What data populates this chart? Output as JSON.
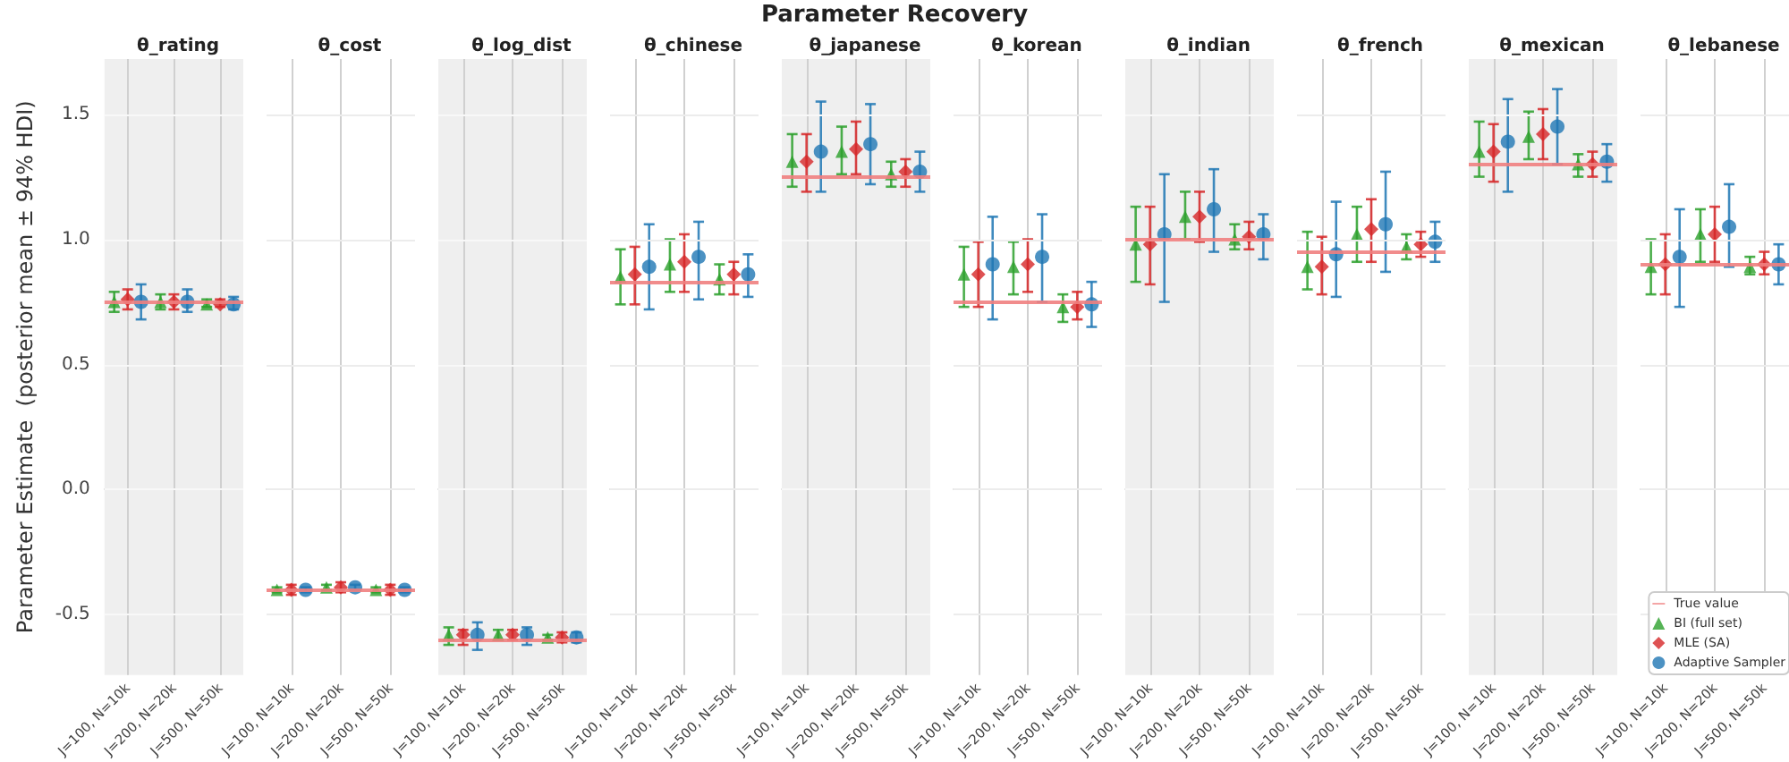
{
  "chart_data": [
    {
      "type": "scatter",
      "title": "θ_rating",
      "ylabel": "Parameter Estimate  (posterior mean ± 94% HDI)",
      "annotations": [
        "Parameter Recovery"
      ],
      "categories": [
        "J=100, N=10k",
        "J=200, N=20k",
        "J=500, N=50k"
      ],
      "ylim": [
        -0.74,
        1.72
      ],
      "yticks": [
        -0.5,
        {
          "value": 0,
          "label": "0.0"
        },
        0.5,
        {
          "value": 1,
          "label": "1.0"
        },
        1.5
      ],
      "grid": true,
      "ref_lines": [
        {
          "axis": "y",
          "value": 0.75,
          "color": "#f08080"
        }
      ],
      "series": [
        {
          "color": "#2ca02c",
          "marker": "triangle",
          "values": [
            0.75,
            0.75,
            0.74
          ],
          "errors": [
            [
              0.71,
              0.79
            ],
            [
              0.72,
              0.78
            ],
            [
              0.73,
              0.76
            ]
          ]
        },
        {
          "color": "#d62728",
          "marker": "diamond",
          "values": [
            0.76,
            0.75,
            0.74
          ],
          "errors": [
            [
              0.72,
              0.8
            ],
            [
              0.72,
              0.78
            ],
            [
              0.73,
              0.76
            ]
          ]
        },
        {
          "color": "#1f77b4",
          "marker": "circle",
          "values": [
            0.75,
            0.75,
            0.74
          ],
          "errors": [
            [
              0.68,
              0.82
            ],
            [
              0.71,
              0.8
            ],
            [
              0.72,
              0.77
            ]
          ]
        }
      ]
    },
    {
      "type": "scatter",
      "title": "θ_cost",
      "categories": [
        "J=100, N=10k",
        "J=200, N=20k",
        "J=500, N=50k"
      ],
      "ylim": [
        -0.74,
        1.72
      ],
      "yticks": [
        -0.5,
        0,
        0.5,
        1,
        1.5
      ],
      "tick_labels": "x",
      "grid": true,
      "ref_lines": [
        {
          "axis": "y",
          "value": -0.4,
          "color": "#f08080"
        }
      ],
      "series": [
        {
          "color": "#2ca02c",
          "marker": "triangle",
          "values": [
            -0.4,
            -0.39,
            -0.4
          ],
          "errors": [
            [
              -0.41,
              -0.39
            ],
            [
              -0.4,
              -0.38
            ],
            [
              -0.41,
              -0.39
            ]
          ]
        },
        {
          "color": "#d62728",
          "marker": "diamond",
          "values": [
            -0.4,
            -0.39,
            -0.4
          ],
          "errors": [
            [
              -0.42,
              -0.38
            ],
            [
              -0.41,
              -0.37
            ],
            [
              -0.42,
              -0.38
            ]
          ]
        },
        {
          "color": "#1f77b4",
          "marker": "circle",
          "values": [
            -0.4,
            -0.39,
            -0.4
          ],
          "errors": [
            [
              -0.41,
              -0.39
            ],
            [
              -0.4,
              -0.38
            ],
            [
              -0.41,
              -0.39
            ]
          ]
        }
      ]
    },
    {
      "type": "scatter",
      "title": "θ_log_dist",
      "categories": [
        "J=100, N=10k",
        "J=200, N=20k",
        "J=500, N=50k"
      ],
      "ylim": [
        -0.74,
        1.72
      ],
      "yticks": [
        -0.5,
        0,
        0.5,
        1,
        1.5
      ],
      "tick_labels": "x",
      "grid": true,
      "ref_lines": [
        {
          "axis": "y",
          "value": -0.6,
          "color": "#f08080"
        }
      ],
      "series": [
        {
          "color": "#2ca02c",
          "marker": "triangle",
          "values": [
            -0.58,
            -0.58,
            -0.59
          ],
          "errors": [
            [
              -0.62,
              -0.55
            ],
            [
              -0.6,
              -0.56
            ],
            [
              -0.6,
              -0.58
            ]
          ]
        },
        {
          "color": "#d62728",
          "marker": "diamond",
          "values": [
            -0.58,
            -0.58,
            -0.59
          ],
          "errors": [
            [
              -0.62,
              -0.56
            ],
            [
              -0.6,
              -0.56
            ],
            [
              -0.61,
              -0.57
            ]
          ]
        },
        {
          "color": "#1f77b4",
          "marker": "circle",
          "values": [
            -0.58,
            -0.58,
            -0.59
          ],
          "errors": [
            [
              -0.64,
              -0.53
            ],
            [
              -0.62,
              -0.55
            ],
            [
              -0.61,
              -0.57
            ]
          ]
        }
      ]
    },
    {
      "type": "scatter",
      "title": "θ_chinese",
      "categories": [
        "J=100, N=10k",
        "J=200, N=20k",
        "J=500, N=50k"
      ],
      "ylim": [
        -0.74,
        1.72
      ],
      "yticks": [
        -0.5,
        0,
        0.5,
        1,
        1.5
      ],
      "tick_labels": "x",
      "grid": true,
      "ref_lines": [
        {
          "axis": "y",
          "value": 0.83,
          "color": "#f08080"
        }
      ],
      "series": [
        {
          "color": "#2ca02c",
          "marker": "triangle",
          "values": [
            0.85,
            0.9,
            0.84
          ],
          "errors": [
            [
              0.74,
              0.96
            ],
            [
              0.79,
              1.0
            ],
            [
              0.78,
              0.9
            ]
          ]
        },
        {
          "color": "#d62728",
          "marker": "diamond",
          "values": [
            0.86,
            0.91,
            0.86
          ],
          "errors": [
            [
              0.74,
              0.97
            ],
            [
              0.79,
              1.02
            ],
            [
              0.78,
              0.91
            ]
          ]
        },
        {
          "color": "#1f77b4",
          "marker": "circle",
          "values": [
            0.89,
            0.93,
            0.86
          ],
          "errors": [
            [
              0.72,
              1.06
            ],
            [
              0.76,
              1.07
            ],
            [
              0.77,
              0.94
            ]
          ]
        }
      ]
    },
    {
      "type": "scatter",
      "title": "θ_japanese",
      "categories": [
        "J=100, N=10k",
        "J=200, N=20k",
        "J=500, N=50k"
      ],
      "ylim": [
        -0.74,
        1.72
      ],
      "yticks": [
        -0.5,
        0,
        0.5,
        1,
        1.5
      ],
      "tick_labels": "x",
      "grid": true,
      "ref_lines": [
        {
          "axis": "y",
          "value": 1.25,
          "color": "#f08080"
        }
      ],
      "series": [
        {
          "color": "#2ca02c",
          "marker": "triangle",
          "values": [
            1.31,
            1.35,
            1.26
          ],
          "errors": [
            [
              1.21,
              1.42
            ],
            [
              1.26,
              1.45
            ],
            [
              1.21,
              1.31
            ]
          ]
        },
        {
          "color": "#d62728",
          "marker": "diamond",
          "values": [
            1.31,
            1.36,
            1.27
          ],
          "errors": [
            [
              1.19,
              1.42
            ],
            [
              1.26,
              1.47
            ],
            [
              1.21,
              1.32
            ]
          ]
        },
        {
          "color": "#1f77b4",
          "marker": "circle",
          "values": [
            1.35,
            1.38,
            1.27
          ],
          "errors": [
            [
              1.19,
              1.55
            ],
            [
              1.22,
              1.54
            ],
            [
              1.19,
              1.35
            ]
          ]
        }
      ]
    },
    {
      "type": "scatter",
      "title": "θ_korean",
      "categories": [
        "J=100, N=10k",
        "J=200, N=20k",
        "J=500, N=50k"
      ],
      "ylim": [
        -0.74,
        1.72
      ],
      "yticks": [
        -0.5,
        0,
        0.5,
        1,
        1.5
      ],
      "tick_labels": "x",
      "grid": true,
      "ref_lines": [
        {
          "axis": "y",
          "value": 0.75,
          "color": "#f08080"
        }
      ],
      "series": [
        {
          "color": "#2ca02c",
          "marker": "triangle",
          "values": [
            0.86,
            0.89,
            0.73
          ],
          "errors": [
            [
              0.73,
              0.97
            ],
            [
              0.78,
              0.99
            ],
            [
              0.67,
              0.78
            ]
          ]
        },
        {
          "color": "#d62728",
          "marker": "diamond",
          "values": [
            0.86,
            0.9,
            0.73
          ],
          "errors": [
            [
              0.73,
              0.99
            ],
            [
              0.79,
              1.0
            ],
            [
              0.68,
              0.79
            ]
          ]
        },
        {
          "color": "#1f77b4",
          "marker": "circle",
          "values": [
            0.9,
            0.93,
            0.74
          ],
          "errors": [
            [
              0.68,
              1.09
            ],
            [
              0.75,
              1.1
            ],
            [
              0.65,
              0.83
            ]
          ]
        }
      ]
    },
    {
      "type": "scatter",
      "title": "θ_indian",
      "categories": [
        "J=100, N=10k",
        "J=200, N=20k",
        "J=500, N=50k"
      ],
      "ylim": [
        -0.74,
        1.72
      ],
      "yticks": [
        -0.5,
        0,
        0.5,
        1,
        1.5
      ],
      "tick_labels": "x",
      "grid": true,
      "ref_lines": [
        {
          "axis": "y",
          "value": 1.0,
          "color": "#f08080"
        }
      ],
      "series": [
        {
          "color": "#2ca02c",
          "marker": "triangle",
          "values": [
            0.98,
            1.09,
            1.0
          ],
          "errors": [
            [
              0.83,
              1.13
            ],
            [
              1.0,
              1.19
            ],
            [
              0.96,
              1.06
            ]
          ]
        },
        {
          "color": "#d62728",
          "marker": "diamond",
          "values": [
            0.98,
            1.09,
            1.01
          ],
          "errors": [
            [
              0.82,
              1.13
            ],
            [
              0.99,
              1.19
            ],
            [
              0.96,
              1.07
            ]
          ]
        },
        {
          "color": "#1f77b4",
          "marker": "circle",
          "values": [
            1.02,
            1.12,
            1.02
          ],
          "errors": [
            [
              0.75,
              1.26
            ],
            [
              0.95,
              1.28
            ],
            [
              0.92,
              1.1
            ]
          ]
        }
      ]
    },
    {
      "type": "scatter",
      "title": "θ_french",
      "categories": [
        "J=100, N=10k",
        "J=200, N=20k",
        "J=500, N=50k"
      ],
      "ylim": [
        -0.74,
        1.72
      ],
      "yticks": [
        -0.5,
        0,
        0.5,
        1,
        1.5
      ],
      "tick_labels": "x",
      "grid": true,
      "ref_lines": [
        {
          "axis": "y",
          "value": 0.95,
          "color": "#f08080"
        }
      ],
      "series": [
        {
          "color": "#2ca02c",
          "marker": "triangle",
          "values": [
            0.89,
            1.02,
            0.97
          ],
          "errors": [
            [
              0.8,
              1.03
            ],
            [
              0.91,
              1.13
            ],
            [
              0.92,
              1.02
            ]
          ]
        },
        {
          "color": "#d62728",
          "marker": "diamond",
          "values": [
            0.89,
            1.04,
            0.98
          ],
          "errors": [
            [
              0.78,
              1.01
            ],
            [
              0.91,
              1.16
            ],
            [
              0.93,
              1.03
            ]
          ]
        },
        {
          "color": "#1f77b4",
          "marker": "circle",
          "values": [
            0.94,
            1.06,
            0.99
          ],
          "errors": [
            [
              0.77,
              1.15
            ],
            [
              0.87,
              1.27
            ],
            [
              0.91,
              1.07
            ]
          ]
        }
      ]
    },
    {
      "type": "scatter",
      "title": "θ_mexican",
      "categories": [
        "J=100, N=10k",
        "J=200, N=20k",
        "J=500, N=50k"
      ],
      "ylim": [
        -0.74,
        1.72
      ],
      "yticks": [
        -0.5,
        0,
        0.5,
        1,
        1.5
      ],
      "tick_labels": "x",
      "grid": true,
      "ref_lines": [
        {
          "axis": "y",
          "value": 1.3,
          "color": "#f08080"
        }
      ],
      "series": [
        {
          "color": "#2ca02c",
          "marker": "triangle",
          "values": [
            1.35,
            1.41,
            1.3
          ],
          "errors": [
            [
              1.25,
              1.47
            ],
            [
              1.32,
              1.51
            ],
            [
              1.25,
              1.34
            ]
          ]
        },
        {
          "color": "#d62728",
          "marker": "diamond",
          "values": [
            1.35,
            1.42,
            1.3
          ],
          "errors": [
            [
              1.23,
              1.46
            ],
            [
              1.32,
              1.52
            ],
            [
              1.25,
              1.35
            ]
          ]
        },
        {
          "color": "#1f77b4",
          "marker": "circle",
          "values": [
            1.39,
            1.45,
            1.31
          ],
          "errors": [
            [
              1.19,
              1.56
            ],
            [
              1.3,
              1.6
            ],
            [
              1.23,
              1.38
            ]
          ]
        }
      ]
    },
    {
      "type": "scatter",
      "title": "θ_lebanese",
      "categories": [
        "J=100, N=10k",
        "J=200, N=20k",
        "J=500, N=50k"
      ],
      "ylim": [
        -0.74,
        1.72
      ],
      "yticks": [
        -0.5,
        0,
        0.5,
        1,
        1.5
      ],
      "tick_labels": "x",
      "grid": true,
      "legend": "bottom right",
      "ref_lines": [
        {
          "axis": "y",
          "value": 0.9,
          "color": "#f08080",
          "label": "True value"
        }
      ],
      "series": [
        {
          "name": "BI (full set)",
          "color": "#2ca02c",
          "marker": "triangle",
          "values": [
            0.89,
            1.02,
            0.89
          ],
          "errors": [
            [
              0.78,
              1.0
            ],
            [
              0.91,
              1.12
            ],
            [
              0.86,
              0.93
            ]
          ]
        },
        {
          "name": "MLE (SA)",
          "color": "#d62728",
          "marker": "diamond",
          "values": [
            0.9,
            1.02,
            0.9
          ],
          "errors": [
            [
              0.78,
              1.02
            ],
            [
              0.91,
              1.13
            ],
            [
              0.86,
              0.95
            ]
          ]
        },
        {
          "name": "Adaptive Sampler",
          "color": "#1f77b4",
          "marker": "circle",
          "values": [
            0.93,
            1.05,
            0.9
          ],
          "errors": [
            [
              0.73,
              1.12
            ],
            [
              0.89,
              1.22
            ],
            [
              0.82,
              0.98
            ]
          ]
        }
      ]
    }
  ]
}
